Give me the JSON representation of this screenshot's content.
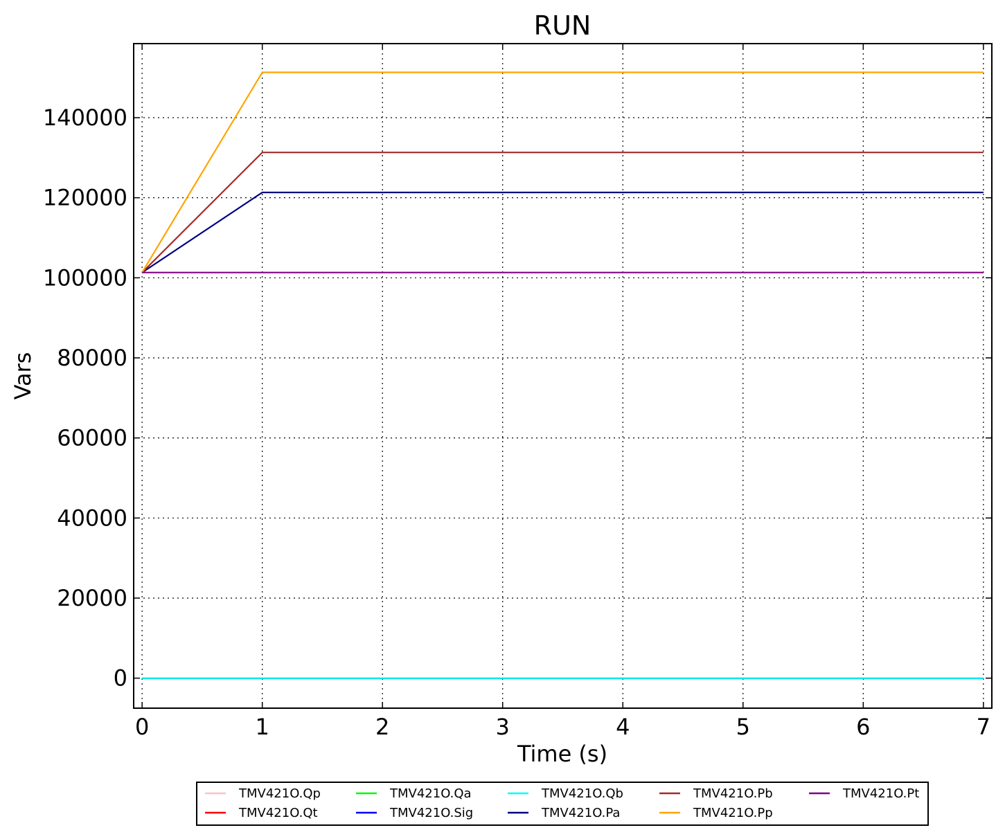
{
  "chart_data": {
    "type": "line",
    "title": "RUN",
    "xlabel": "Time (s)",
    "ylabel": "Vars",
    "xlim": [
      -0.07,
      7.07
    ],
    "ylim": [
      -7500,
      158500
    ],
    "xticks": [
      0,
      1,
      2,
      3,
      4,
      5,
      6,
      7
    ],
    "yticks": [
      0,
      20000,
      40000,
      60000,
      80000,
      100000,
      120000,
      140000
    ],
    "x": [
      0,
      1,
      2,
      3,
      4,
      5,
      6,
      7
    ],
    "grid": true,
    "legend_position": "bottom-center",
    "legend_columns": 5,
    "series": [
      {
        "name": "TMV421O.Qp",
        "color": "#ffc0cb",
        "values": [
          0,
          0,
          0,
          0,
          0,
          0,
          0,
          0
        ]
      },
      {
        "name": "TMV421O.Qt",
        "color": "#ff0000",
        "values": [
          0,
          0,
          0,
          0,
          0,
          0,
          0,
          0
        ]
      },
      {
        "name": "TMV421O.Qa",
        "color": "#00ff00",
        "values": [
          0,
          0,
          0,
          0,
          0,
          0,
          0,
          0
        ]
      },
      {
        "name": "TMV421O.Sig",
        "color": "#0000ff",
        "values": [
          0,
          0,
          0,
          0,
          0,
          0,
          0,
          0
        ]
      },
      {
        "name": "TMV421O.Qb",
        "color": "#00ffff",
        "values": [
          0,
          0,
          0,
          0,
          0,
          0,
          0,
          0
        ]
      },
      {
        "name": "TMV421O.Pa",
        "color": "#000080",
        "values": [
          101325,
          121325,
          121325,
          121325,
          121325,
          121325,
          121325,
          121325
        ]
      },
      {
        "name": "TMV421O.Pb",
        "color": "#a52a2a",
        "values": [
          101325,
          131325,
          131325,
          131325,
          131325,
          131325,
          131325,
          131325
        ]
      },
      {
        "name": "TMV421O.Pp",
        "color": "#ffa500",
        "values": [
          101325,
          151325,
          151325,
          151325,
          151325,
          151325,
          151325,
          151325
        ]
      },
      {
        "name": "TMV421O.Pt",
        "color": "#800080",
        "values": [
          101325,
          101325,
          101325,
          101325,
          101325,
          101325,
          101325,
          101325
        ]
      }
    ]
  }
}
